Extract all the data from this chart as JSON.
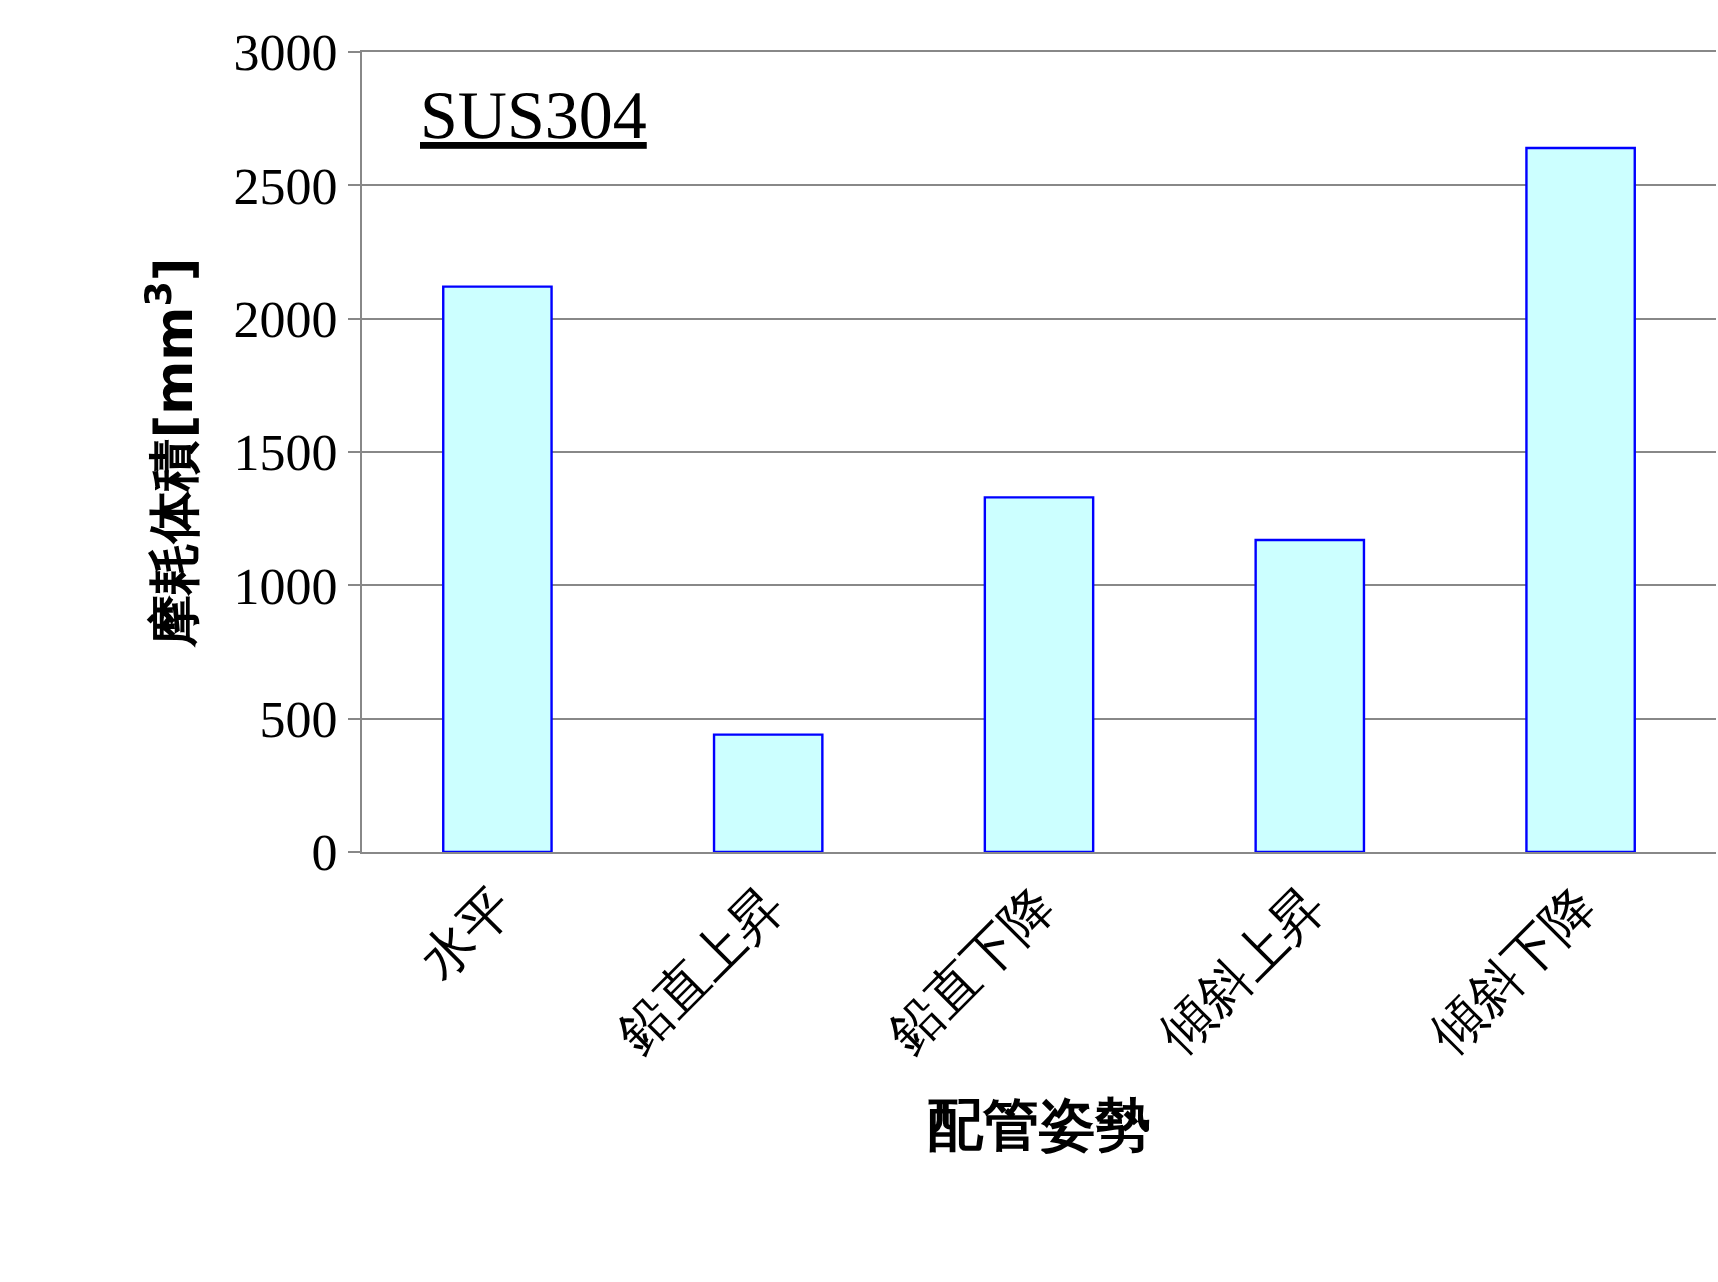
{
  "chart_data": {
    "type": "bar",
    "categories": [
      "水平",
      "鉛直上昇",
      "鉛直下降",
      "傾斜上昇",
      "傾斜下降"
    ],
    "values": [
      2120,
      440,
      1330,
      1170,
      2640
    ],
    "color": "#ccffff",
    "xlabel": "配管姿勢",
    "ylabel": "摩耗体積[mm$^{3}$]",
    "annotations": [
      "SUS304"
    ],
    "ylim": [
      0,
      3000
    ],
    "yticks": [
      0,
      500,
      1000,
      1500,
      2000,
      2500,
      3000
    ],
    "grid": "y"
  }
}
